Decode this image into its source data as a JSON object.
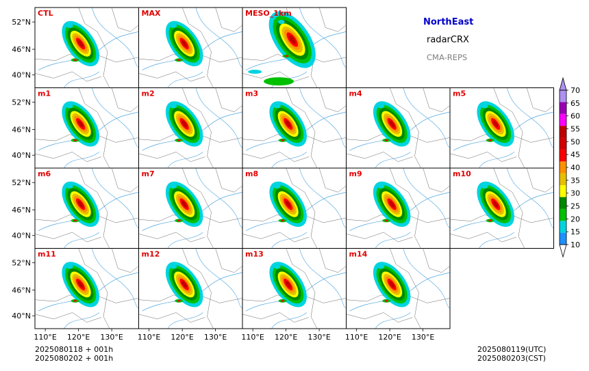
{
  "header": {
    "region": "NorthEast",
    "product": "radarCRX",
    "system": "CMA-REPS"
  },
  "panels": [
    {
      "label": "CTL",
      "filled": true
    },
    {
      "label": "MAX",
      "filled": true
    },
    {
      "label": "MESO_1km",
      "filled": true
    },
    {
      "label": "",
      "filled": false
    },
    {
      "label": "",
      "filled": false
    },
    {
      "label": "m1",
      "filled": true
    },
    {
      "label": "m2",
      "filled": true
    },
    {
      "label": "m3",
      "filled": true
    },
    {
      "label": "m4",
      "filled": true
    },
    {
      "label": "m5",
      "filled": true
    },
    {
      "label": "m6",
      "filled": true
    },
    {
      "label": "m7",
      "filled": true
    },
    {
      "label": "m8",
      "filled": true
    },
    {
      "label": "m9",
      "filled": true
    },
    {
      "label": "m10",
      "filled": true
    },
    {
      "label": "m11",
      "filled": true
    },
    {
      "label": "m12",
      "filled": true
    },
    {
      "label": "m13",
      "filled": true
    },
    {
      "label": "m14",
      "filled": true
    },
    {
      "label": "",
      "filled": false
    }
  ],
  "lat_ticks": [
    "52°N",
    "46°N",
    "40°N"
  ],
  "lon_ticks": [
    "110°E",
    "120°E",
    "130°E"
  ],
  "colorbar": {
    "levels": [
      "10",
      "15",
      "20",
      "25",
      "30",
      "35",
      "40",
      "45",
      "50",
      "55",
      "60",
      "65",
      "70"
    ],
    "colors": [
      "#1e90ff",
      "#00d4e0",
      "#00c000",
      "#008800",
      "#ffff00",
      "#e6c000",
      "#ff9000",
      "#ff0000",
      "#d40000",
      "#c00000",
      "#ff00ff",
      "#9900b4",
      "#ad90f0"
    ]
  },
  "footer": {
    "init_utc": "2025080118  +  001h",
    "init_cst": "2025080202  +  001h",
    "valid_utc": "2025080119(UTC)",
    "valid_cst": "2025080203(CST)"
  }
}
